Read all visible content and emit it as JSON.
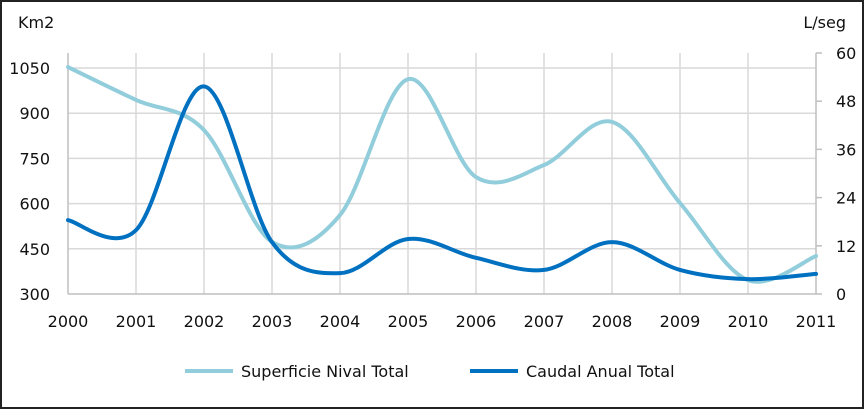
{
  "chart_data": {
    "type": "line",
    "title": "",
    "x": [
      2000,
      2001,
      2002,
      2003,
      2004,
      2005,
      2006,
      2007,
      2008,
      2009,
      2010,
      2011
    ],
    "y_left": {
      "label": "Km2",
      "lim": [
        300,
        1050
      ],
      "ticks": [
        300,
        450,
        600,
        750,
        900,
        1050
      ]
    },
    "y_right": {
      "label": "L/seg",
      "lim": [
        0,
        60
      ],
      "ticks": [
        0,
        12,
        24,
        36,
        48,
        60
      ]
    },
    "grid": true,
    "smooth": true,
    "legend_position": "bottom",
    "series": [
      {
        "name": "Superficie Nival Total",
        "axis": "left",
        "color": "#92CDDC",
        "values": [
          1053,
          944,
          844,
          473,
          562,
          1013,
          688,
          728,
          871,
          602,
          346,
          426
        ]
      },
      {
        "name": "Caudal Anual Total",
        "axis": "right",
        "color": "#0070C0",
        "values": [
          18.4,
          15.9,
          51.7,
          12.9,
          5.2,
          13.7,
          9.0,
          6.0,
          12.9,
          6.0,
          3.7,
          5.0
        ]
      }
    ]
  }
}
